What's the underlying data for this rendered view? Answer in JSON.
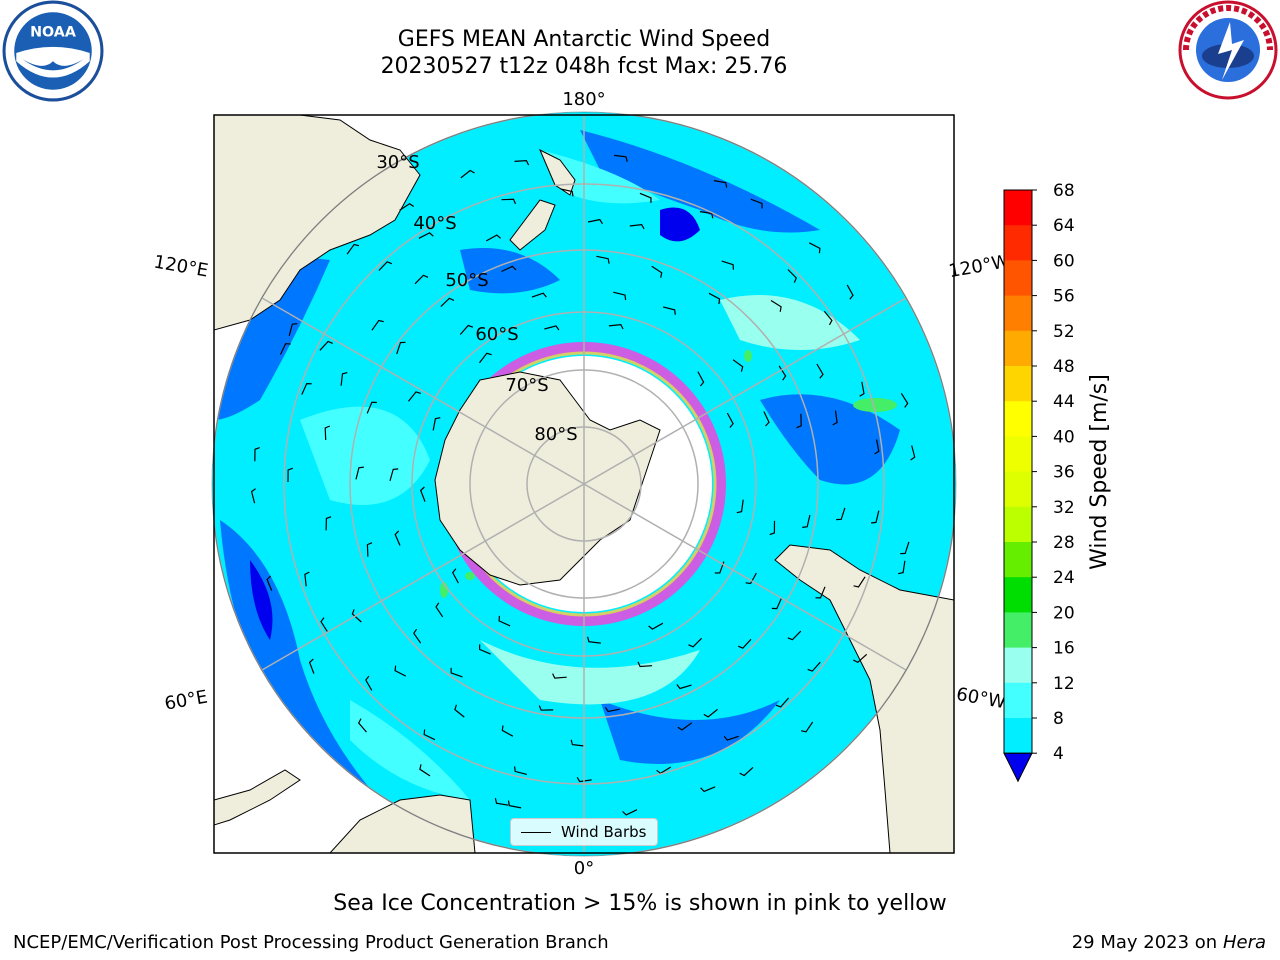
{
  "title_line1": "GEFS MEAN Antarctic Wind Speed",
  "title_line2": "20230527 t12z 048h fcst   Max: 25.76",
  "map": {
    "lon_labels": [
      "180°",
      "0°",
      "120°E",
      "60°E",
      "120°W",
      "60°W"
    ],
    "lat_labels": [
      "30°S",
      "40°S",
      "50°S",
      "60°S",
      "70°S",
      "80°S"
    ],
    "legend_label": "Wind Barbs"
  },
  "colorbar": {
    "label": "Wind Speed [m/s]",
    "ticks": [
      "68",
      "64",
      "60",
      "56",
      "52",
      "48",
      "44",
      "40",
      "36",
      "32",
      "28",
      "24",
      "20",
      "16",
      "12",
      "8",
      "4"
    ],
    "colors": [
      "#ff0000",
      "#ff2a00",
      "#ff5500",
      "#ff8000",
      "#ffaa00",
      "#ffd500",
      "#ffff00",
      "#eeff00",
      "#ddff00",
      "#bbff00",
      "#66ee00",
      "#00dd00",
      "#44ee66",
      "#99ffee",
      "#44ffff",
      "#00eeff",
      "#0077ff"
    ],
    "under_color": "#0000ee"
  },
  "note": "Sea Ice Concentration > 15% is shown in pink to yellow",
  "footer_left": "NCEP/EMC/Verification Post Processing Product Generation Branch",
  "footer_date": "29 May 2023 on",
  "footer_machine": "Hera"
}
